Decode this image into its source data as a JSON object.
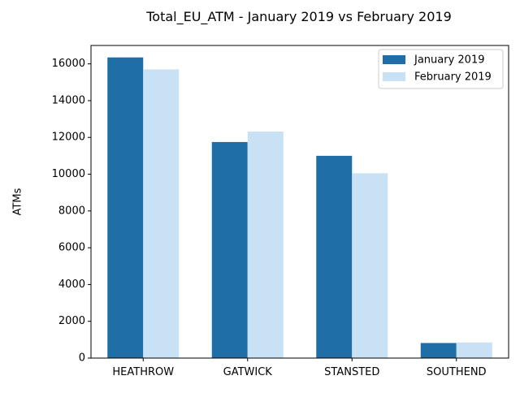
{
  "chart_data": {
    "type": "bar",
    "title": "Total_EU_ATM - January 2019 vs February 2019",
    "xlabel": "",
    "ylabel": "ATMs",
    "categories": [
      "HEATHROW",
      "GATWICK",
      "STANSTED",
      "SOUTHEND"
    ],
    "series": [
      {
        "name": "January 2019",
        "color": "#1f6ea8",
        "values": [
          16350,
          11750,
          11000,
          820
        ]
      },
      {
        "name": "February 2019",
        "color": "#c9e1f4",
        "values": [
          15700,
          12320,
          10050,
          850
        ]
      }
    ],
    "ylim": [
      0,
      17000
    ],
    "yticks": [
      "0",
      "2000",
      "4000",
      "6000",
      "8000",
      "10000",
      "12000",
      "14000",
      "16000"
    ],
    "ytick_values": [
      0,
      2000,
      4000,
      6000,
      8000,
      10000,
      12000,
      14000,
      16000
    ],
    "grid": false,
    "legend_position": "top-right"
  }
}
